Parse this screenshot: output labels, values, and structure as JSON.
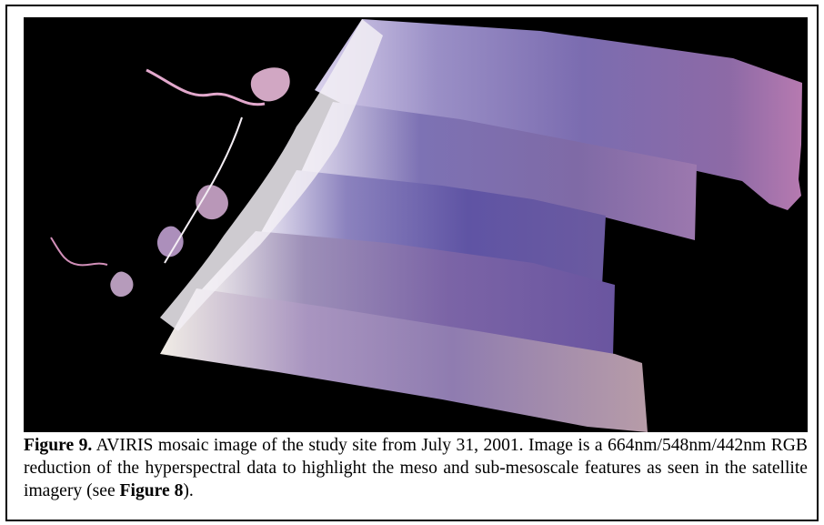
{
  "figure": {
    "image_alt": "AVIRIS mosaic image",
    "caption": {
      "label": "Figure 9.",
      "text_part1": " AVIRIS mosaic image of the study site from July 31, 2001.  Image is a 664nm/548nm/442nm RGB reduction of the hyperspectral data to highlight the meso and sub-mesoscale features as seen in the satellite imagery (see ",
      "ref": "Figure 8",
      "text_part2": ")."
    }
  },
  "colors": {
    "background": "#000000",
    "water_main": "#6a5fa8",
    "water_light": "#b9a9d8",
    "coast_white": "#f2eff5",
    "land_pink": "#e8b9d8"
  }
}
